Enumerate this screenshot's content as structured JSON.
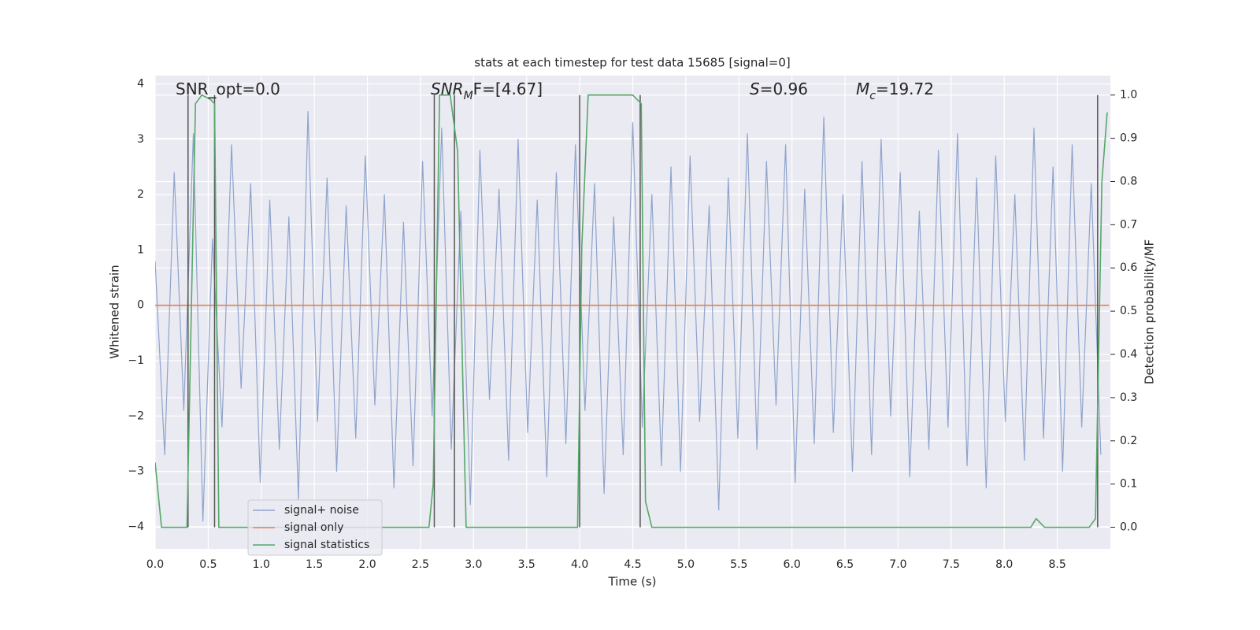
{
  "chart_data": {
    "type": "line",
    "title": "stats at each timestep for test data 15685 [signal=0]",
    "xlabel": "Time (s)",
    "ylabel": "Whitened strain",
    "y2label": "Detection probability/MF",
    "xlim": [
      0,
      9.0
    ],
    "ylim": [
      -4.4,
      4.15
    ],
    "y2lim": [
      -0.05,
      1.045
    ],
    "xticks": [
      {
        "value": 0,
        "label": "0.0"
      },
      {
        "value": 0.5,
        "label": "0.5"
      },
      {
        "value": 1,
        "label": "1.0"
      },
      {
        "value": 1.5,
        "label": "1.5"
      },
      {
        "value": 2,
        "label": "2.0"
      },
      {
        "value": 2.5,
        "label": "2.5"
      },
      {
        "value": 3,
        "label": "3.0"
      },
      {
        "value": 3.5,
        "label": "3.5"
      },
      {
        "value": 4,
        "label": "4.0"
      },
      {
        "value": 4.5,
        "label": "4.5"
      },
      {
        "value": 5,
        "label": "5.0"
      },
      {
        "value": 5.5,
        "label": "5.5"
      },
      {
        "value": 6,
        "label": "6.0"
      },
      {
        "value": 6.5,
        "label": "6.5"
      },
      {
        "value": 7,
        "label": "7.0"
      },
      {
        "value": 7.5,
        "label": "7.5"
      },
      {
        "value": 8,
        "label": "8.0"
      },
      {
        "value": 8.5,
        "label": "8.5"
      }
    ],
    "yticks": [
      {
        "value": -4,
        "label": "−4"
      },
      {
        "value": -3,
        "label": "−3"
      },
      {
        "value": -2,
        "label": "−2"
      },
      {
        "value": -1,
        "label": "−1"
      },
      0,
      1,
      2,
      3,
      4
    ],
    "y2ticks": [
      {
        "value": 0,
        "label": "0.0"
      },
      {
        "value": 0.1,
        "label": "0.1"
      },
      {
        "value": 0.2,
        "label": "0.2"
      },
      {
        "value": 0.3,
        "label": "0.3"
      },
      {
        "value": 0.4,
        "label": "0.4"
      },
      {
        "value": 0.5,
        "label": "0.5"
      },
      {
        "value": 0.6,
        "label": "0.6"
      },
      {
        "value": 0.7,
        "label": "0.7"
      },
      {
        "value": 0.8,
        "label": "0.8"
      },
      {
        "value": 0.9,
        "label": "0.9"
      },
      {
        "value": 1,
        "label": "1.0"
      }
    ],
    "grid": true,
    "legend": "lower left",
    "series": [
      {
        "name": "signal+ noise",
        "color": "#8fa4cc",
        "x": [
          0,
          0.09,
          0.18,
          0.27,
          0.36,
          0.45,
          0.54,
          0.63,
          0.72,
          0.81,
          0.9,
          0.99,
          1.08,
          1.17,
          1.26,
          1.35,
          1.44,
          1.53,
          1.62,
          1.71,
          1.8,
          1.89,
          1.98,
          2.07,
          2.16,
          2.25,
          2.34,
          2.43,
          2.52,
          2.61,
          2.7,
          2.79,
          2.88,
          2.97,
          3.06,
          3.15,
          3.24,
          3.33,
          3.42,
          3.51,
          3.6,
          3.69,
          3.78,
          3.87,
          3.96,
          4.05,
          4.14,
          4.23,
          4.32,
          4.41,
          4.5,
          4.59,
          4.68,
          4.77,
          4.86,
          4.95,
          5.04,
          5.13,
          5.22,
          5.31,
          5.4,
          5.49,
          5.58,
          5.67,
          5.76,
          5.85,
          5.94,
          6.03,
          6.12,
          6.21,
          6.3,
          6.39,
          6.48,
          6.57,
          6.66,
          6.75,
          6.84,
          6.93,
          7.02,
          7.11,
          7.2,
          7.29,
          7.38,
          7.47,
          7.56,
          7.65,
          7.74,
          7.83,
          7.92,
          8.01,
          8.1,
          8.19,
          8.28,
          8.37,
          8.46,
          8.55,
          8.64,
          8.73,
          8.82,
          8.91
        ],
        "values": [
          0.8,
          -2.7,
          2.4,
          -1.9,
          3.1,
          -3.9,
          1.2,
          -2.2,
          2.9,
          -1.5,
          2.2,
          -3.2,
          1.9,
          -2.6,
          1.6,
          -3.5,
          3.5,
          -2.1,
          2.3,
          -3.0,
          1.8,
          -2.4,
          2.7,
          -1.8,
          2.0,
          -3.3,
          1.5,
          -2.9,
          2.6,
          -2.0,
          3.2,
          -2.6,
          1.7,
          -3.6,
          2.8,
          -1.7,
          2.1,
          -2.8,
          3.0,
          -2.3,
          1.9,
          -3.1,
          2.4,
          -2.5,
          2.9,
          -1.9,
          2.2,
          -3.4,
          1.6,
          -2.7,
          3.3,
          -2.2,
          2.0,
          -2.9,
          2.5,
          -3.0,
          2.7,
          -2.1,
          1.8,
          -3.7,
          2.3,
          -2.4,
          3.1,
          -2.6,
          2.6,
          -1.8,
          2.9,
          -3.2,
          2.1,
          -2.5,
          3.4,
          -2.3,
          2.0,
          -3.0,
          2.6,
          -2.7,
          3.0,
          -2.0,
          2.4,
          -3.1,
          1.7,
          -2.6,
          2.8,
          -2.2,
          3.1,
          -2.9,
          2.3,
          -3.3,
          2.7,
          -2.1,
          2.0,
          -2.8,
          3.2,
          -2.4,
          2.5,
          -3.0,
          2.9,
          -2.2,
          2.2,
          -2.7
        ]
      },
      {
        "name": "signal only",
        "color": "#dd8452",
        "x": [
          0,
          8.99
        ],
        "values": [
          0,
          0
        ]
      },
      {
        "name": "signal statistics",
        "color": "#55a868",
        "axis": "y2",
        "x": [
          0,
          0.06,
          0.3,
          0.38,
          0.44,
          0.52,
          0.56,
          0.6,
          2.58,
          2.62,
          2.68,
          2.78,
          2.85,
          2.93,
          3.98,
          4.02,
          4.08,
          4.5,
          4.58,
          4.62,
          4.68,
          8.25,
          8.3,
          8.38,
          8.8,
          8.86,
          8.92,
          8.97
        ],
        "values": [
          0.15,
          0,
          0,
          0.98,
          1,
          0.99,
          0.98,
          0,
          0,
          0.1,
          1,
          1,
          0.87,
          0,
          0,
          0.65,
          1,
          1,
          0.98,
          0.06,
          0,
          0,
          0.02,
          0,
          0,
          0.02,
          0.8,
          0.96
        ]
      }
    ],
    "vlines": {
      "x": [
        0.31,
        0.56,
        2.63,
        2.82,
        4.0,
        4.57,
        8.88
      ],
      "range": [
        0,
        1
      ],
      "color": "#555555"
    },
    "annotations": [
      {
        "text": "SNR_opt=0.0"
      },
      {
        "symbol": "SNR",
        "subscript": "M",
        "rest": "F=[4.67]"
      },
      {
        "symbol": "S",
        "rest": "=0.96"
      },
      {
        "symbol": "M",
        "subscript": "c",
        "rest": "=19.72"
      }
    ]
  }
}
